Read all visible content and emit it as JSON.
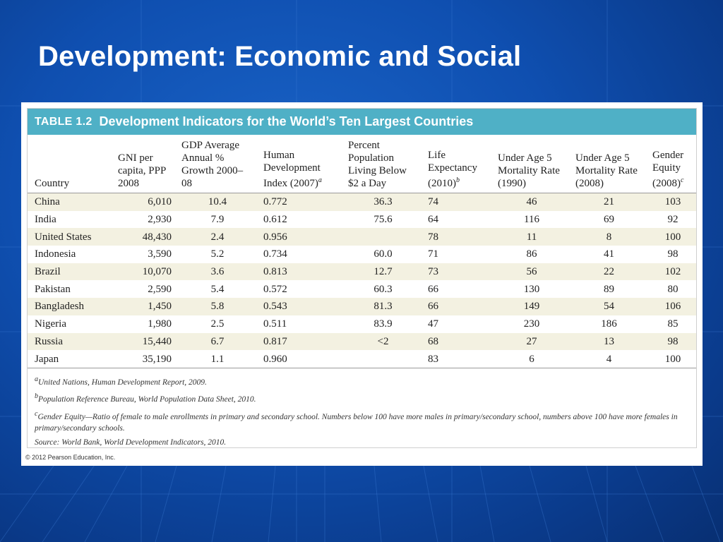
{
  "slide": {
    "title": "Development: Economic and Social"
  },
  "table": {
    "number": "TABLE 1.2",
    "caption": "Development Indicators for the World’s Ten Largest Countries",
    "headers": [
      {
        "text": "Country",
        "sup": ""
      },
      {
        "text": "GNI per capita, PPP 2008",
        "sup": ""
      },
      {
        "text": "GDP Average Annual % Growth 2000–08",
        "sup": ""
      },
      {
        "text": "Human Development Index (2007)",
        "sup": "a"
      },
      {
        "text": "Percent Population Living Below $2 a Day",
        "sup": ""
      },
      {
        "text": "Life Expectancy (2010)",
        "sup": "b"
      },
      {
        "text": "Under Age 5 Mortality Rate (1990)",
        "sup": ""
      },
      {
        "text": "Under Age 5 Mortality Rate (2008)",
        "sup": ""
      },
      {
        "text": "Gender Equity (2008)",
        "sup": "c"
      }
    ],
    "rows": [
      [
        "China",
        "6,010",
        "10.4",
        "0.772",
        "36.3",
        "74",
        "46",
        "21",
        "103"
      ],
      [
        "India",
        "2,930",
        "7.9",
        "0.612",
        "75.6",
        "64",
        "116",
        "69",
        "92"
      ],
      [
        "United States",
        "48,430",
        "2.4",
        "0.956",
        "",
        "78",
        "11",
        "8",
        "100"
      ],
      [
        "Indonesia",
        "3,590",
        "5.2",
        "0.734",
        "60.0",
        "71",
        "86",
        "41",
        "98"
      ],
      [
        "Brazil",
        "10,070",
        "3.6",
        "0.813",
        "12.7",
        "73",
        "56",
        "22",
        "102"
      ],
      [
        "Pakistan",
        "2,590",
        "5.4",
        "0.572",
        "60.3",
        "66",
        "130",
        "89",
        "80"
      ],
      [
        "Bangladesh",
        "1,450",
        "5.8",
        "0.543",
        "81.3",
        "66",
        "149",
        "54",
        "106"
      ],
      [
        "Nigeria",
        "1,980",
        "2.5",
        "0.511",
        "83.9",
        "47",
        "230",
        "186",
        "85"
      ],
      [
        "Russia",
        "15,440",
        "6.7",
        "0.817",
        "<2",
        "68",
        "27",
        "13",
        "98"
      ],
      [
        "Japan",
        "35,190",
        "1.1",
        "0.960",
        "",
        "83",
        "6",
        "4",
        "100"
      ]
    ],
    "footnotes": [
      {
        "sup": "a",
        "text": "United Nations, Human Development Report, 2009."
      },
      {
        "sup": "b",
        "text": "Population Reference Bureau, World Population Data Sheet, 2010."
      },
      {
        "sup": "c",
        "text": "Gender Equity—Ratio of female to male enrollments in primary and secondary school. Numbers below 100 have more males in primary/secondary school, numbers above 100 have more females in primary/secondary schools."
      },
      {
        "sup": "",
        "text": "Source: World Bank, World Development Indicators, 2010."
      }
    ],
    "copyright": "© 2012 Pearson Education, Inc."
  },
  "colors": {
    "background": "#0f4fb0",
    "header_bar": "#4fb0c6",
    "alt_row": "#f3f1e1"
  }
}
